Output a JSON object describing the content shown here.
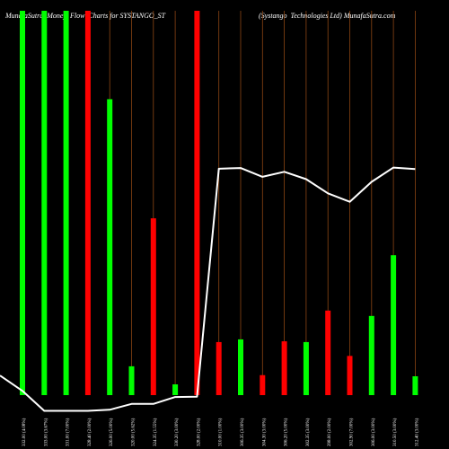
{
  "header": {
    "left": "MunafaSutra  Money  Flow  Charts for SYSTANGO_ST",
    "right": "(Systango  Technologies Ltd) MunafaSutra.com"
  },
  "colors": {
    "background": "#000000",
    "up": "#00ff00",
    "down": "#ff0000",
    "grid": "#8b4513",
    "line": "#ffffff",
    "label": "#ffffff"
  },
  "chart_data": {
    "type": "bar",
    "ylim": [
      0,
      100
    ],
    "categories": [
      "332.00  (4.08%)",
      "333.00  (3.67%)",
      "331.00  (7.00%)",
      "328.40  (2.00%)",
      "326.00  (5.00%)",
      "320.00  (5.62%)",
      "324.35  (1.55%)",
      "330.20  (3.00%)",
      "328.00  (2.00%)",
      "310.00  (1.00%)",
      "306.35  (3.00%)",
      "304.30  (3.00%)",
      "306.20  (5.00%)",
      "302.35  (3.00%)",
      "298.00  (2.00%)",
      "302.90  (7.00%)",
      "306.00  (3.00%)",
      "310.50  (3.00%)",
      "312.40  (3.00%)"
    ],
    "series": [
      {
        "values": [
          100,
          100,
          100,
          100,
          77,
          7.5,
          46,
          2.8,
          100,
          13.8,
          14.5,
          5.2,
          14,
          13.8,
          22,
          10.2,
          20.6,
          36.4,
          4.9
        ],
        "colors": [
          "up",
          "up",
          "up",
          "down",
          "up",
          "up",
          "down",
          "up",
          "down",
          "down",
          "up",
          "down",
          "down",
          "up",
          "down",
          "down",
          "up",
          "up",
          "up"
        ]
      },
      {
        "type": "line",
        "values": [
          1.1,
          -4.1,
          -4.1,
          -4.1,
          -3.8,
          -2.3,
          -2.3,
          -0.5,
          -0.4,
          58.9,
          59.1,
          56.8,
          58.1,
          56.2,
          52.5,
          50.3,
          55.5,
          59.2,
          58.8
        ]
      }
    ]
  }
}
